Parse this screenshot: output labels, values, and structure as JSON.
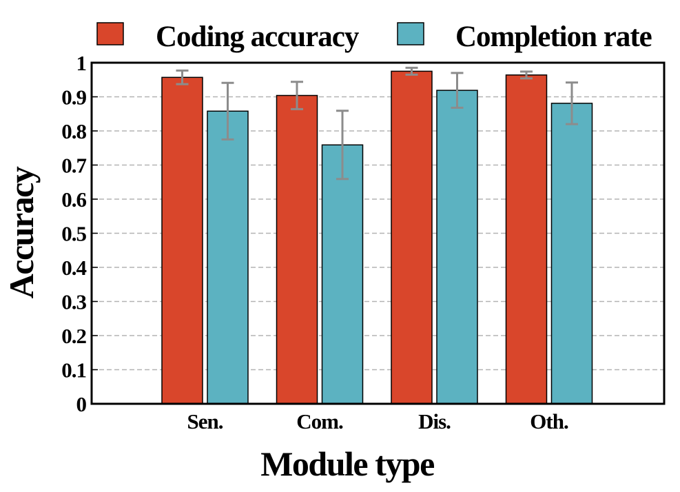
{
  "chart_data": {
    "type": "bar",
    "title": "",
    "xlabel": "Module type",
    "ylabel": "Accuracy",
    "ylim": [
      0,
      1
    ],
    "yticks": [
      0,
      0.1,
      0.2,
      0.3,
      0.4,
      0.5,
      0.6,
      0.7,
      0.8,
      0.9,
      1
    ],
    "ytick_labels": [
      "0",
      "0.1",
      "0.2",
      "0.3",
      "0.4",
      "0.5",
      "0.6",
      "0.7",
      "0.8",
      "0.9",
      "1"
    ],
    "grid": true,
    "legend_position": "top",
    "categories": [
      "Sen.",
      "Com.",
      "Dis.",
      "Oth."
    ],
    "series": [
      {
        "name": "Coding accuracy",
        "color": "#d9462b",
        "values": [
          0.957,
          0.904,
          0.975,
          0.964
        ],
        "error": [
          0.02,
          0.04,
          0.01,
          0.01
        ]
      },
      {
        "name": "Completion rate",
        "color": "#5cb2c1",
        "values": [
          0.858,
          0.759,
          0.919,
          0.881
        ],
        "error": [
          0.083,
          0.1,
          0.051,
          0.061
        ]
      }
    ],
    "error_bar_color": "#8c8c8c"
  }
}
